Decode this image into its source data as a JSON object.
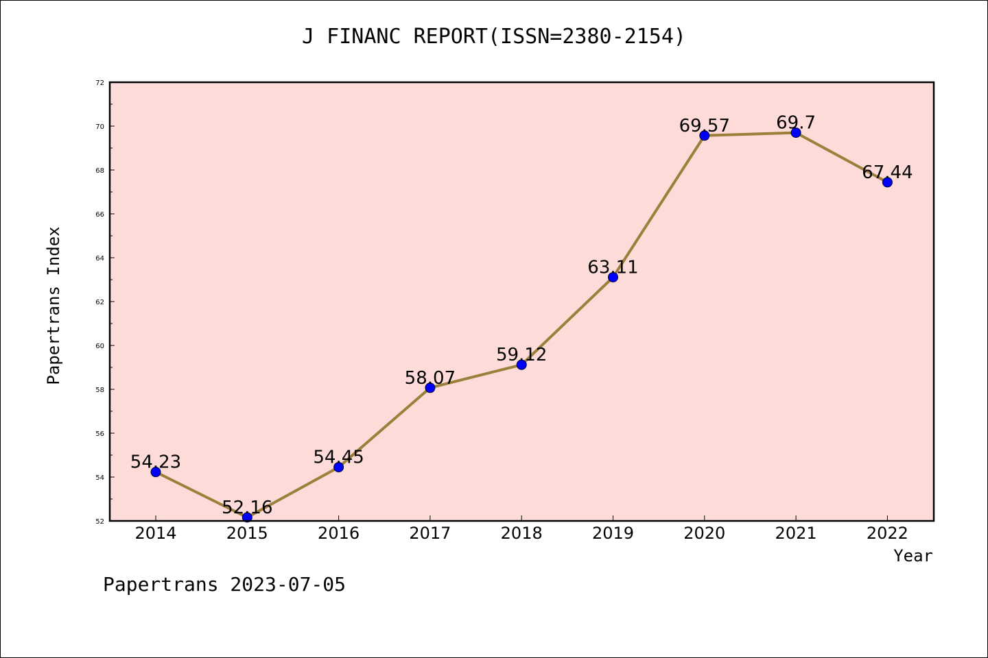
{
  "title": "J FINANC REPORT(ISSN=2380-2154)",
  "footer": "Papertrans 2023-07-05",
  "colors": {
    "plot_background": "#fddbd8",
    "line": "#9b7f3a",
    "marker": "#0000ff"
  },
  "chart_data": {
    "type": "line",
    "title": "J FINANC REPORT(ISSN=2380-2154)",
    "xlabel": "Year",
    "ylabel": "Papertrans Index",
    "categories": [
      "2014",
      "2015",
      "2016",
      "2017",
      "2018",
      "2019",
      "2020",
      "2021",
      "2022"
    ],
    "series": [
      {
        "values": [
          54.23,
          52.16,
          54.45,
          58.07,
          59.12,
          63.11,
          69.57,
          69.7,
          67.44
        ],
        "labels": [
          "54.23",
          "52.16",
          "54.45",
          "58.07",
          "59.12",
          "63.11",
          "69.57",
          "69.7",
          "67.44"
        ]
      }
    ],
    "ylim": [
      52,
      72
    ],
    "yticks": [
      52,
      54,
      56,
      58,
      60,
      62,
      64,
      66,
      68,
      70,
      72
    ],
    "grid": false,
    "legend": "none"
  }
}
